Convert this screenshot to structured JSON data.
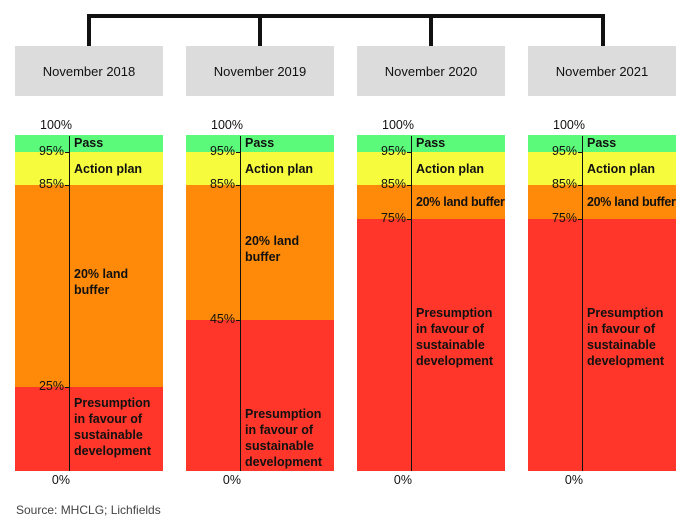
{
  "columns": [
    {
      "period": "November 2018",
      "bands": [
        {
          "label": "Pass",
          "from": 95,
          "to": 100,
          "color": "#5cfa7a"
        },
        {
          "label": "Action plan",
          "from": 85,
          "to": 95,
          "color": "#f6fb3e"
        },
        {
          "label": "20% land buffer",
          "from": 25,
          "to": 85,
          "color": "#ff8a0a"
        },
        {
          "label": "Presumption in favour of sustainable development",
          "from": 0,
          "to": 25,
          "color": "#ff3629"
        }
      ],
      "ticks": [
        "100%",
        "95%",
        "85%",
        "25%",
        "0%"
      ]
    },
    {
      "period": "November 2019",
      "bands": [
        {
          "label": "Pass",
          "from": 95,
          "to": 100,
          "color": "#5cfa7a"
        },
        {
          "label": "Action plan",
          "from": 85,
          "to": 95,
          "color": "#f6fb3e"
        },
        {
          "label": "20% land buffer",
          "from": 45,
          "to": 85,
          "color": "#ff8a0a"
        },
        {
          "label": "Presumption in favour of sustainable development",
          "from": 0,
          "to": 45,
          "color": "#ff3629"
        }
      ],
      "ticks": [
        "100%",
        "95%",
        "85%",
        "45%",
        "0%"
      ]
    },
    {
      "period": "November 2020",
      "bands": [
        {
          "label": "Pass",
          "from": 95,
          "to": 100,
          "color": "#5cfa7a"
        },
        {
          "label": "Action plan",
          "from": 85,
          "to": 95,
          "color": "#f6fb3e"
        },
        {
          "label": "20% land buffer",
          "from": 75,
          "to": 85,
          "color": "#ff8a0a"
        },
        {
          "label": "Presumption in favour of sustainable development",
          "from": 0,
          "to": 75,
          "color": "#ff3629"
        }
      ],
      "ticks": [
        "100%",
        "95%",
        "85%",
        "75%",
        "0%"
      ]
    },
    {
      "period": "November 2021",
      "bands": [
        {
          "label": "Pass",
          "from": 95,
          "to": 100,
          "color": "#5cfa7a"
        },
        {
          "label": "Action plan",
          "from": 85,
          "to": 95,
          "color": "#f6fb3e"
        },
        {
          "label": "20% land buffer",
          "from": 75,
          "to": 85,
          "color": "#ff8a0a"
        },
        {
          "label": "Presumption in favour of sustainable development",
          "from": 0,
          "to": 75,
          "color": "#ff3629"
        }
      ],
      "ticks": [
        "100%",
        "95%",
        "85%",
        "75%",
        "0%"
      ]
    }
  ],
  "source": "Source: MHCLG; Lichfields"
}
